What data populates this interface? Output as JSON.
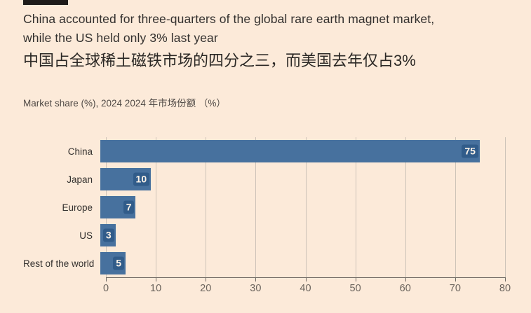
{
  "page": {
    "background_color": "#fcead9",
    "tag_color": "#1f1c1a"
  },
  "header": {
    "title_line1": "China accounted for three-quarters of the global rare earth magnet market,",
    "title_line2": "while the US held only 3% last year",
    "subtitle_zh": "中国占全球稀土磁铁市场的四分之三，而美国去年仅占3%",
    "meta_label": "Market share (%), 2024  2024 年市场份额 （%）"
  },
  "chart_data": {
    "type": "bar",
    "orientation": "horizontal",
    "title": "Market share (%), 2024",
    "categories": [
      "China",
      "Japan",
      "Europe",
      "US",
      "Rest of the world"
    ],
    "values": [
      75,
      10,
      7,
      3,
      5
    ],
    "xlim": [
      0,
      80
    ],
    "xticks": [
      0,
      10,
      20,
      30,
      40,
      50,
      60,
      70,
      80
    ],
    "grid": true,
    "legend": "none",
    "bar_color": "#47719e",
    "value_badge_color": "#315c8a",
    "value_text_color": "#fdf3e8",
    "gridline_color": "#cdc3b8",
    "axis_color": "#6f6862"
  }
}
